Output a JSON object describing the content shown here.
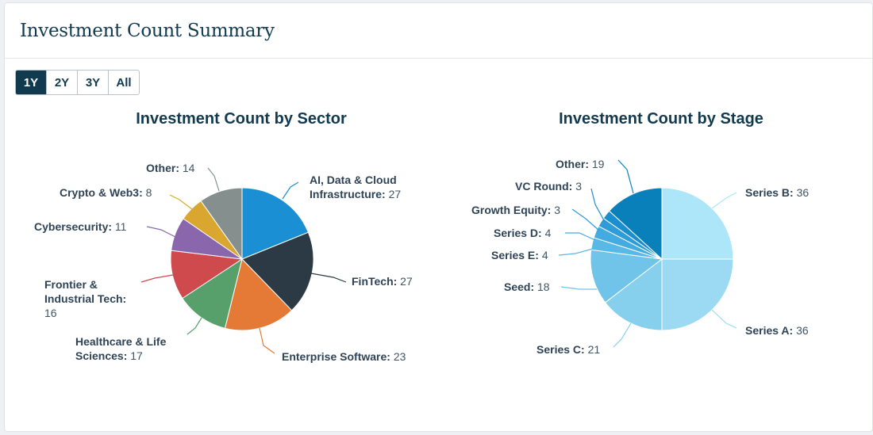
{
  "header": {
    "title": "Investment Count Summary"
  },
  "range_selector": {
    "options": [
      "1Y",
      "2Y",
      "3Y",
      "All"
    ],
    "selected": "1Y"
  },
  "chart_data": [
    {
      "type": "pie",
      "title": "Investment Count by Sector",
      "slices": [
        {
          "name": "AI, Data & Cloud Infrastructure",
          "value": 27,
          "color": "#1a8fd4",
          "lines": [
            "AI, Data & Cloud",
            "Infrastructure: 27"
          ]
        },
        {
          "name": "FinTech",
          "value": 27,
          "color": "#2b3a44",
          "lines": [
            "FinTech: 27"
          ]
        },
        {
          "name": "Enterprise Software",
          "value": 23,
          "color": "#e47a36",
          "lines": [
            "Enterprise Software: 23"
          ]
        },
        {
          "name": "Healthcare & Life Sciences",
          "value": 17,
          "color": "#58a06b",
          "lines": [
            "Healthcare & Life",
            "Sciences: 17"
          ]
        },
        {
          "name": "Frontier & Industrial Tech",
          "value": 16,
          "color": "#cf4a4c",
          "lines": [
            "Frontier &",
            "Industrial Tech:",
            "16"
          ]
        },
        {
          "name": "Cybersecurity",
          "value": 11,
          "color": "#8a67ad",
          "lines": [
            "Cybersecurity: 11"
          ]
        },
        {
          "name": "Crypto & Web3",
          "value": 8,
          "color": "#d9a72f",
          "lines": [
            "Crypto & Web3: 8"
          ]
        },
        {
          "name": "Other",
          "value": 14,
          "color": "#848f8e",
          "lines": [
            "Other: 14"
          ]
        }
      ]
    },
    {
      "type": "pie",
      "title": "Investment Count by Stage",
      "slices": [
        {
          "name": "Series B",
          "value": 36,
          "color": "#ade6f8",
          "lines": [
            "Series B: 36"
          ]
        },
        {
          "name": "Series A",
          "value": 36,
          "color": "#9bdaf2",
          "lines": [
            "Series A: 36"
          ]
        },
        {
          "name": "Series C",
          "value": 21,
          "color": "#86d0ee",
          "lines": [
            "Series C: 21"
          ]
        },
        {
          "name": "Seed",
          "value": 18,
          "color": "#70c4ea",
          "lines": [
            "Seed: 18"
          ]
        },
        {
          "name": "Series E",
          "value": 4,
          "color": "#5ab8e6",
          "lines": [
            "Series E: 4"
          ]
        },
        {
          "name": "Series D",
          "value": 4,
          "color": "#44abe0",
          "lines": [
            "Series D: 4"
          ]
        },
        {
          "name": "Growth Equity",
          "value": 3,
          "color": "#2f9cd8",
          "lines": [
            "Growth Equity: 3"
          ]
        },
        {
          "name": "VC Round",
          "value": 3,
          "color": "#1b8ecf",
          "lines": [
            "VC Round: 3"
          ]
        },
        {
          "name": "Other",
          "value": 19,
          "color": "#0a80bb",
          "lines": [
            "Other: 19"
          ]
        }
      ]
    }
  ]
}
